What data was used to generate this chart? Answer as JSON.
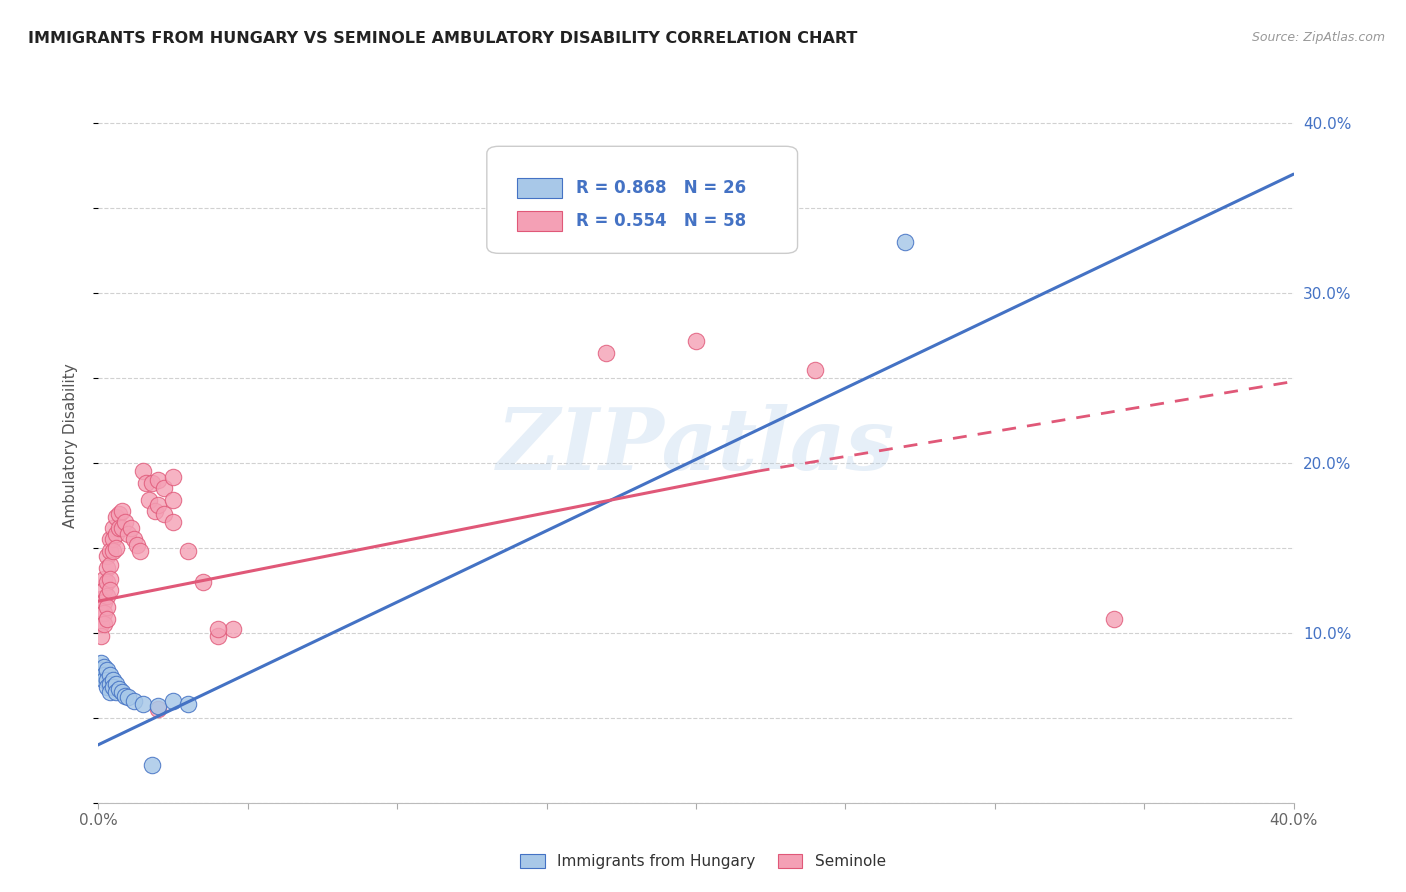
{
  "title": "IMMIGRANTS FROM HUNGARY VS SEMINOLE AMBULATORY DISABILITY CORRELATION CHART",
  "source": "Source: ZipAtlas.com",
  "ylabel": "Ambulatory Disability",
  "watermark": "ZIPatlas",
  "xlim": [
    0.0,
    0.4
  ],
  "ylim": [
    0.0,
    0.42
  ],
  "legend_label1": "Immigrants from Hungary",
  "legend_label2": "Seminole",
  "color_blue": "#A8C8E8",
  "color_pink": "#F4A0B5",
  "line_blue": "#4472C4",
  "line_pink": "#E05878",
  "blue_scatter": [
    [
      0.001,
      0.082
    ],
    [
      0.001,
      0.078
    ],
    [
      0.002,
      0.08
    ],
    [
      0.002,
      0.075
    ],
    [
      0.002,
      0.072
    ],
    [
      0.003,
      0.078
    ],
    [
      0.003,
      0.072
    ],
    [
      0.003,
      0.068
    ],
    [
      0.004,
      0.075
    ],
    [
      0.004,
      0.07
    ],
    [
      0.004,
      0.065
    ],
    [
      0.005,
      0.072
    ],
    [
      0.005,
      0.068
    ],
    [
      0.006,
      0.07
    ],
    [
      0.006,
      0.065
    ],
    [
      0.007,
      0.067
    ],
    [
      0.008,
      0.065
    ],
    [
      0.009,
      0.063
    ],
    [
      0.01,
      0.062
    ],
    [
      0.012,
      0.06
    ],
    [
      0.015,
      0.058
    ],
    [
      0.02,
      0.057
    ],
    [
      0.025,
      0.06
    ],
    [
      0.03,
      0.058
    ],
    [
      0.018,
      0.022
    ],
    [
      0.27,
      0.33
    ]
  ],
  "pink_scatter": [
    [
      0.001,
      0.12
    ],
    [
      0.001,
      0.112
    ],
    [
      0.001,
      0.105
    ],
    [
      0.001,
      0.098
    ],
    [
      0.002,
      0.132
    ],
    [
      0.002,
      0.125
    ],
    [
      0.002,
      0.118
    ],
    [
      0.002,
      0.112
    ],
    [
      0.002,
      0.105
    ],
    [
      0.003,
      0.145
    ],
    [
      0.003,
      0.138
    ],
    [
      0.003,
      0.13
    ],
    [
      0.003,
      0.122
    ],
    [
      0.003,
      0.115
    ],
    [
      0.003,
      0.108
    ],
    [
      0.004,
      0.155
    ],
    [
      0.004,
      0.148
    ],
    [
      0.004,
      0.14
    ],
    [
      0.004,
      0.132
    ],
    [
      0.004,
      0.125
    ],
    [
      0.005,
      0.162
    ],
    [
      0.005,
      0.155
    ],
    [
      0.005,
      0.148
    ],
    [
      0.006,
      0.168
    ],
    [
      0.006,
      0.158
    ],
    [
      0.006,
      0.15
    ],
    [
      0.007,
      0.17
    ],
    [
      0.007,
      0.162
    ],
    [
      0.008,
      0.172
    ],
    [
      0.008,
      0.162
    ],
    [
      0.009,
      0.165
    ],
    [
      0.01,
      0.158
    ],
    [
      0.011,
      0.162
    ],
    [
      0.012,
      0.155
    ],
    [
      0.013,
      0.152
    ],
    [
      0.014,
      0.148
    ],
    [
      0.015,
      0.195
    ],
    [
      0.016,
      0.188
    ],
    [
      0.017,
      0.178
    ],
    [
      0.018,
      0.188
    ],
    [
      0.019,
      0.172
    ],
    [
      0.02,
      0.19
    ],
    [
      0.02,
      0.175
    ],
    [
      0.022,
      0.185
    ],
    [
      0.022,
      0.17
    ],
    [
      0.025,
      0.192
    ],
    [
      0.025,
      0.178
    ],
    [
      0.025,
      0.165
    ],
    [
      0.03,
      0.148
    ],
    [
      0.035,
      0.13
    ],
    [
      0.04,
      0.098
    ],
    [
      0.045,
      0.102
    ],
    [
      0.02,
      0.055
    ],
    [
      0.17,
      0.265
    ],
    [
      0.2,
      0.272
    ],
    [
      0.24,
      0.255
    ],
    [
      0.34,
      0.108
    ],
    [
      0.04,
      0.102
    ]
  ],
  "blue_line": [
    [
      -0.005,
      0.03
    ],
    [
      0.4,
      0.37
    ]
  ],
  "pink_line_solid": [
    [
      -0.002,
      0.118
    ],
    [
      0.22,
      0.195
    ]
  ],
  "pink_line_dashed": [
    [
      0.22,
      0.195
    ],
    [
      0.4,
      0.248
    ]
  ]
}
